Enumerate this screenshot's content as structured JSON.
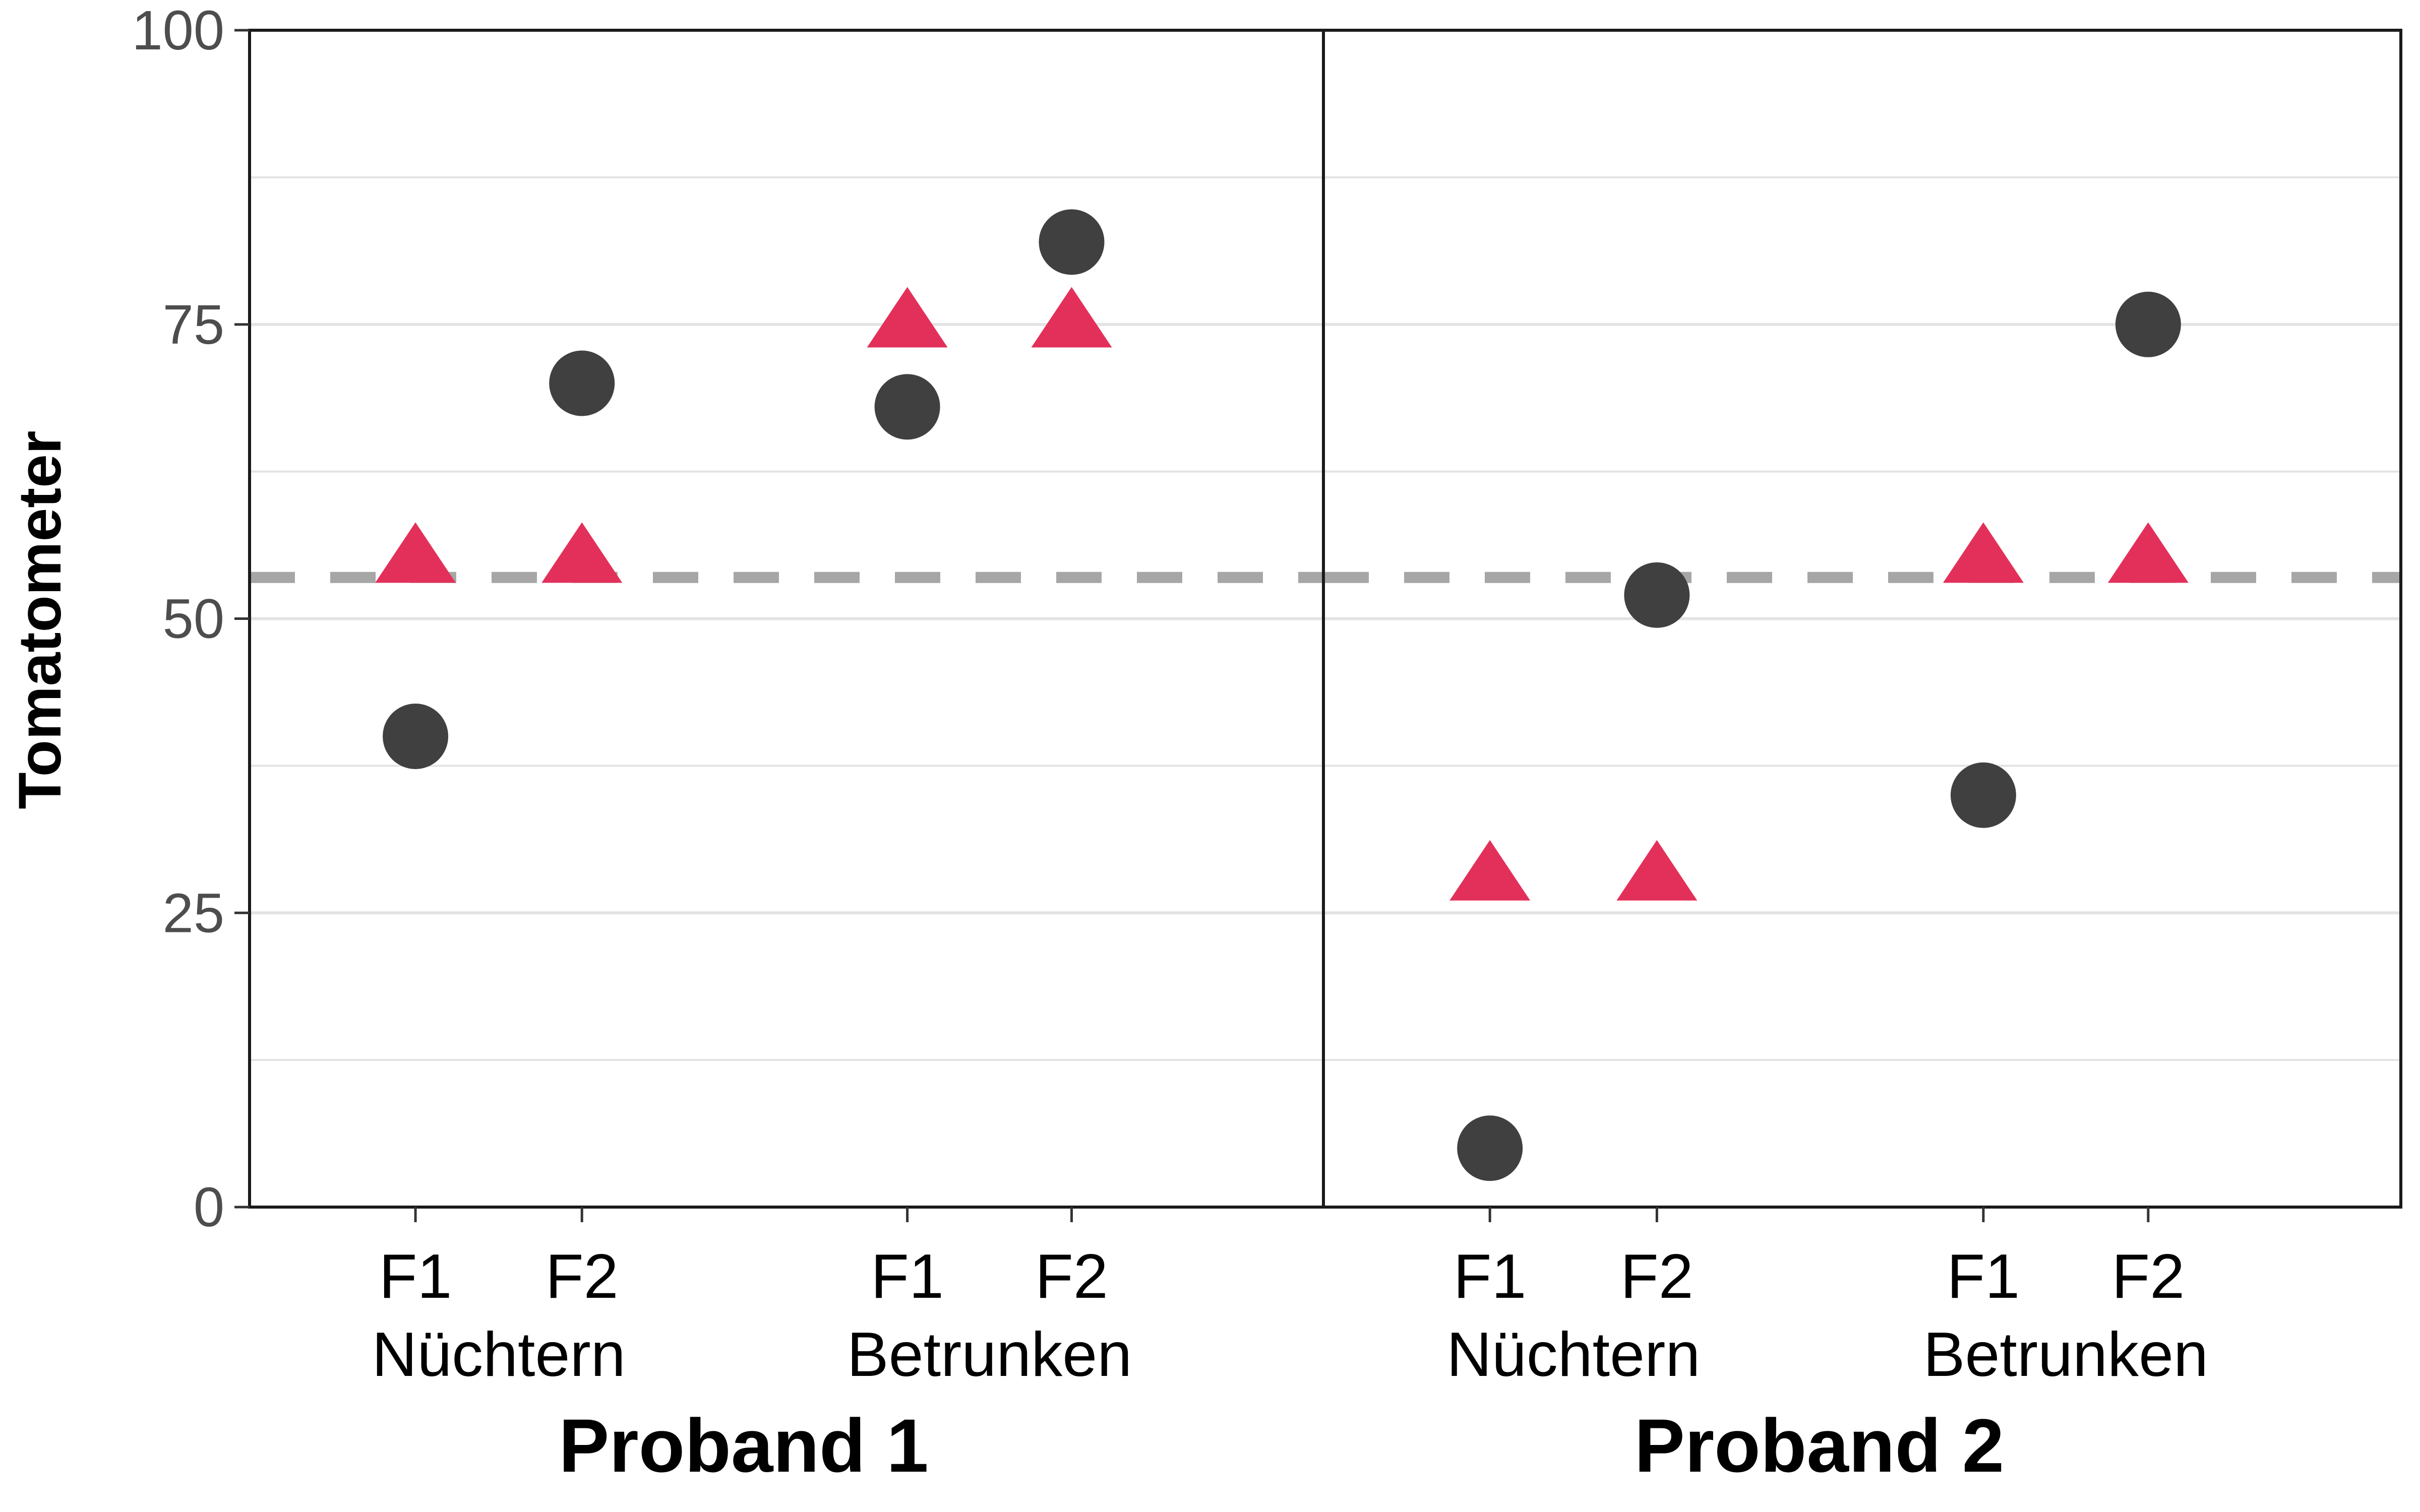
{
  "chart_data": {
    "type": "scatter",
    "title": "",
    "ylabel": "Tomatometer",
    "ylim": [
      0,
      100
    ],
    "yticks": [
      0,
      25,
      50,
      75,
      100
    ],
    "grid": true,
    "reference_line": 53.5,
    "colors": {
      "circle": "#404040",
      "triangle": "#E3305A",
      "reference": "#a6a6a6"
    },
    "panels": [
      {
        "label": "Proband 1",
        "groups": [
          {
            "label": "Nüchtern",
            "categories": [
              "F1",
              "F2"
            ]
          },
          {
            "label": "Betrunken",
            "categories": [
              "F1",
              "F2"
            ]
          }
        ],
        "series": [
          {
            "marker": "circle",
            "values": [
              40,
              70,
              68,
              82
            ]
          },
          {
            "marker": "triangle",
            "values": [
              55,
              55,
              75,
              75
            ]
          }
        ]
      },
      {
        "label": "Proband 2",
        "groups": [
          {
            "label": "Nüchtern",
            "categories": [
              "F1",
              "F2"
            ]
          },
          {
            "label": "Betrunken",
            "categories": [
              "F1",
              "F2"
            ]
          }
        ],
        "series": [
          {
            "marker": "circle",
            "values": [
              5,
              52,
              35,
              75
            ]
          },
          {
            "marker": "triangle",
            "values": [
              28,
              28,
              55,
              55
            ]
          }
        ]
      }
    ]
  }
}
